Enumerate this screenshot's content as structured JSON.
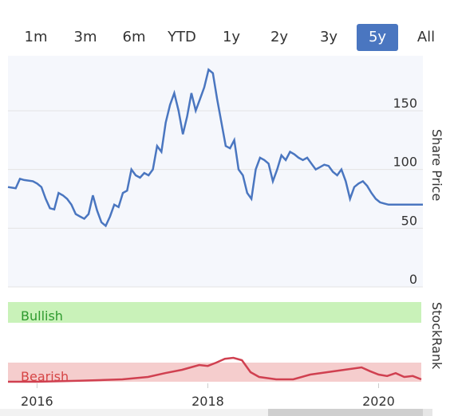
{
  "range_selector": {
    "buttons": [
      {
        "label": "1m",
        "active": false
      },
      {
        "label": "3m",
        "active": false
      },
      {
        "label": "6m",
        "active": false
      },
      {
        "label": "YTD",
        "active": false
      },
      {
        "label": "1y",
        "active": false
      },
      {
        "label": "2y",
        "active": false
      },
      {
        "label": "3y",
        "active": false
      },
      {
        "label": "5y",
        "active": true
      },
      {
        "label": "All",
        "active": false
      }
    ],
    "active_color": "#4a76c0"
  },
  "colors": {
    "price_line": "#4a76c0",
    "plot_fill": "#f5f7fc",
    "bullish_band": "#c9f2b9",
    "bullish_text": "#2e9a2e",
    "bearish_band": "#f5cdcd",
    "bearish_text": "#d64545",
    "rank_bearish_line": "#d04050",
    "rank_neutral_line": "#8a9cc0"
  },
  "chart_data": [
    {
      "type": "line",
      "ylabel": "Share Price",
      "ylim": [
        0,
        190
      ],
      "yticks": [
        0,
        50,
        100,
        150
      ],
      "xlim": [
        2015.66,
        2020.5
      ],
      "xticks": [
        {
          "value": 2016,
          "label": "2016"
        },
        {
          "value": 2018,
          "label": "2018"
        },
        {
          "value": 2020,
          "label": "2020"
        }
      ],
      "grid": true,
      "series": [
        {
          "x": [
            2015.66,
            2015.75,
            2015.8,
            2015.85,
            2015.95,
            2016.0,
            2016.05,
            2016.1,
            2016.15,
            2016.2,
            2016.25,
            2016.3,
            2016.35,
            2016.4,
            2016.45,
            2016.5,
            2016.55,
            2016.6,
            2016.65,
            2016.7,
            2016.75,
            2016.8,
            2016.85,
            2016.9,
            2016.95,
            2017.0,
            2017.05,
            2017.1,
            2017.15,
            2017.2,
            2017.25,
            2017.3,
            2017.35,
            2017.4,
            2017.45,
            2017.5,
            2017.55,
            2017.6,
            2017.65,
            2017.7,
            2017.75,
            2017.8,
            2017.85,
            2017.9,
            2017.95,
            2018.0,
            2018.05,
            2018.1,
            2018.15,
            2018.2,
            2018.25,
            2018.3,
            2018.35,
            2018.4,
            2018.45,
            2018.5,
            2018.55,
            2018.6,
            2018.65,
            2018.7,
            2018.75,
            2018.8,
            2018.85,
            2018.9,
            2018.95,
            2019.0,
            2019.05,
            2019.1,
            2019.15,
            2019.2,
            2019.25,
            2019.3,
            2019.35,
            2019.4,
            2019.45,
            2019.5,
            2019.55,
            2019.6,
            2019.65,
            2019.7,
            2019.75,
            2019.8,
            2019.85,
            2019.9,
            2019.95,
            2020.0,
            2020.05,
            2020.1,
            2020.15,
            2020.2,
            2020.25,
            2020.3,
            2020.35,
            2020.4,
            2020.45,
            2020.5
          ],
          "values": [
            85,
            84,
            92,
            91,
            90,
            88,
            85,
            75,
            67,
            66,
            80,
            78,
            75,
            70,
            62,
            60,
            58,
            62,
            78,
            65,
            55,
            52,
            60,
            70,
            68,
            80,
            82,
            100,
            95,
            93,
            97,
            95,
            100,
            120,
            115,
            140,
            155,
            165,
            150,
            130,
            145,
            165,
            150,
            160,
            170,
            185,
            182,
            160,
            140,
            120,
            118,
            125,
            100,
            95,
            80,
            75,
            100,
            110,
            108,
            105,
            90,
            100,
            112,
            108,
            115,
            113,
            110,
            108,
            110,
            105,
            100,
            102,
            104,
            103,
            98,
            95,
            100,
            90,
            75,
            85,
            88,
            90,
            86,
            80,
            75,
            72,
            71,
            70,
            70,
            70,
            70,
            70,
            70,
            70,
            70,
            70
          ],
          "values_note": ""
        }
      ]
    },
    {
      "type": "line",
      "ylabel": "StockRank",
      "bands": [
        {
          "label": "Bullish"
        },
        {
          "label": "Bearish"
        }
      ],
      "series": [
        {
          "x": [
            2015.66,
            2016.0,
            2016.5,
            2017.0,
            2017.3,
            2017.5,
            2017.7,
            2017.8,
            2017.9,
            2018.0,
            2018.1,
            2018.2,
            2018.3,
            2018.4,
            2018.5,
            2018.6,
            2018.8,
            2019.0,
            2019.2,
            2019.4,
            2019.6,
            2019.8,
            2019.9,
            2020.0,
            2020.1,
            2020.2,
            2020.3,
            2020.4,
            2020.5
          ],
          "values": [
            0,
            0,
            2,
            5,
            10,
            18,
            25,
            30,
            35,
            33,
            40,
            48,
            50,
            45,
            20,
            10,
            5,
            5,
            15,
            20,
            25,
            30,
            22,
            15,
            12,
            18,
            10,
            12,
            5
          ]
        }
      ]
    }
  ]
}
